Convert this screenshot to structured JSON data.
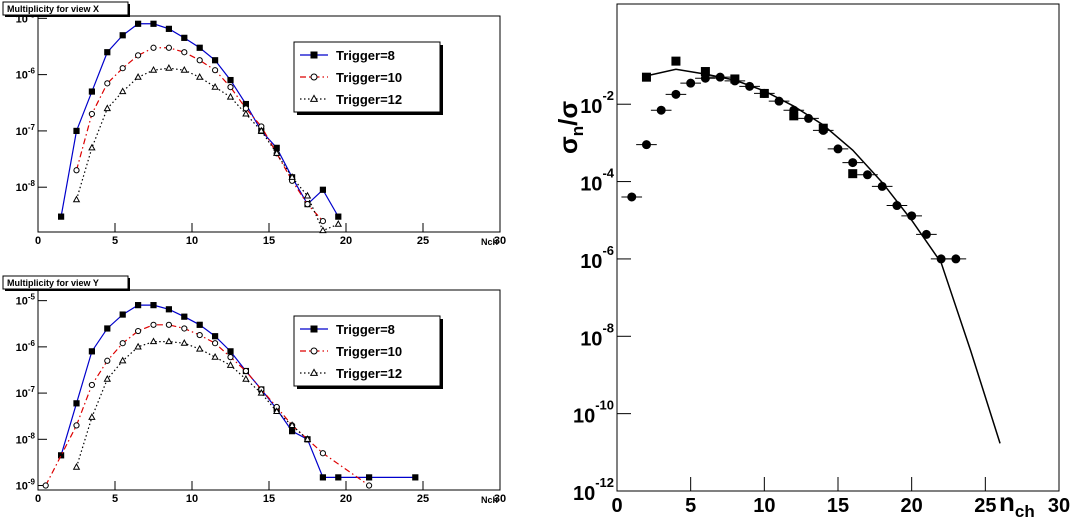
{
  "chart_data": [
    {
      "type": "line",
      "title": "Multiplicity for view X",
      "xlabel": "Nch",
      "ylog": true,
      "xlim": [
        0,
        30
      ],
      "xticks": [
        0,
        5,
        10,
        15,
        20,
        25,
        30
      ],
      "ylim": [
        1.6e-09,
        1.1e-05
      ],
      "yticks": [
        {
          "value": 1e-08,
          "label": "10",
          "exponent": "-8"
        },
        {
          "value": 1e-07,
          "label": "10",
          "exponent": "-7"
        },
        {
          "value": 1e-06,
          "label": "10",
          "exponent": "-6"
        },
        {
          "value": 1e-05,
          "label": "10",
          "exponent": "-5"
        }
      ],
      "legend": "upper right",
      "series": [
        {
          "name": "Trigger=8",
          "color": "#0000cc",
          "line_style": "solid",
          "marker": "square",
          "marker_color": "#000000",
          "marker_fill": true,
          "x": [
            1.5,
            2.5,
            3.5,
            4.5,
            5.5,
            6.5,
            7.5,
            8.5,
            9.5,
            10.5,
            11.5,
            12.5,
            13.5,
            14.5,
            15.5,
            16.5,
            17.5,
            18.5,
            19.5
          ],
          "values": [
            3e-09,
            1e-07,
            5e-07,
            2.5e-06,
            5e-06,
            8e-06,
            8e-06,
            6.5e-06,
            4.5e-06,
            3e-06,
            1.8e-06,
            8e-07,
            3e-07,
            1e-07,
            5e-08,
            1.5e-08,
            5e-09,
            9e-09,
            3e-09
          ]
        },
        {
          "name": "Trigger=10",
          "color": "#dd0000",
          "line_style": "dashdot",
          "marker": "circle",
          "marker_color": "#000000",
          "marker_fill": false,
          "x": [
            2.5,
            3.5,
            4.5,
            5.5,
            6.5,
            7.5,
            8.5,
            9.5,
            10.5,
            11.5,
            12.5,
            13.5,
            14.5,
            15.5,
            16.5,
            17.5,
            18.5
          ],
          "values": [
            2e-08,
            2e-07,
            7e-07,
            1.3e-06,
            2.2e-06,
            3e-06,
            3e-06,
            2.5e-06,
            1.8e-06,
            1.2e-06,
            6e-07,
            2.5e-07,
            1.2e-07,
            4e-08,
            1.3e-08,
            5e-09,
            2.5e-09
          ]
        },
        {
          "name": "Trigger=12",
          "color": "#000000",
          "line_style": "dotted",
          "marker": "triangle",
          "marker_color": "#000000",
          "marker_fill": false,
          "x": [
            2.5,
            3.5,
            4.5,
            5.5,
            6.5,
            7.5,
            8.5,
            9.5,
            10.5,
            11.5,
            12.5,
            13.5,
            14.5,
            15.5,
            16.5,
            17.5,
            18.5,
            19.5
          ],
          "values": [
            6e-09,
            5e-08,
            2.5e-07,
            5e-07,
            9e-07,
            1.2e-06,
            1.3e-06,
            1.2e-06,
            9e-07,
            6e-07,
            4e-07,
            2e-07,
            1e-07,
            4e-08,
            1.5e-08,
            7e-09,
            1.7e-09,
            2.2e-09
          ]
        }
      ]
    },
    {
      "type": "line",
      "title": "Multiplicity for view Y",
      "xlabel": "Nch",
      "ylog": true,
      "xlim": [
        0,
        30
      ],
      "xticks": [
        0,
        5,
        10,
        15,
        20,
        25,
        30
      ],
      "ylim": [
        8e-10,
        1.7e-05
      ],
      "yticks": [
        {
          "value": 1e-09,
          "label": "10",
          "exponent": "-9"
        },
        {
          "value": 1e-08,
          "label": "10",
          "exponent": "-8"
        },
        {
          "value": 1e-07,
          "label": "10",
          "exponent": "-7"
        },
        {
          "value": 1e-06,
          "label": "10",
          "exponent": "-6"
        },
        {
          "value": 1e-05,
          "label": "10",
          "exponent": "-5"
        }
      ],
      "legend": "upper right",
      "series": [
        {
          "name": "Trigger=8",
          "color": "#0000cc",
          "line_style": "solid",
          "marker": "square",
          "marker_color": "#000000",
          "marker_fill": true,
          "x": [
            1.5,
            2.5,
            3.5,
            4.5,
            5.5,
            6.5,
            7.5,
            8.5,
            9.5,
            10.5,
            11.5,
            12.5,
            13.5,
            14.5,
            15.5,
            16.5,
            17.5,
            18.5,
            19.5,
            21.5,
            24.5
          ],
          "values": [
            4.5e-09,
            6e-08,
            8e-07,
            2.5e-06,
            5e-06,
            8e-06,
            8e-06,
            6.5e-06,
            4.5e-06,
            3e-06,
            1.7e-06,
            8e-07,
            3e-07,
            1.2e-07,
            4.5e-08,
            1.5e-08,
            1e-08,
            1.5e-09,
            1.5e-09,
            1.5e-09,
            1.5e-09
          ]
        },
        {
          "name": "Trigger=10",
          "color": "#dd0000",
          "line_style": "dashdot",
          "marker": "circle",
          "marker_color": "#000000",
          "marker_fill": false,
          "x": [
            0.5,
            2.5,
            3.5,
            4.5,
            5.5,
            6.5,
            7.5,
            8.5,
            9.5,
            10.5,
            11.5,
            12.5,
            13.5,
            14.5,
            15.5,
            16.5,
            17.5,
            18.5,
            21.5
          ],
          "values": [
            1e-09,
            2e-08,
            1.5e-07,
            5e-07,
            1.2e-06,
            2.2e-06,
            3e-06,
            3e-06,
            2.5e-06,
            1.8e-06,
            1.2e-06,
            6e-07,
            3e-07,
            1.2e-07,
            5e-08,
            2e-08,
            1e-08,
            5e-09,
            1e-09
          ]
        },
        {
          "name": "Trigger=12",
          "color": "#000000",
          "line_style": "dotted",
          "marker": "triangle",
          "marker_color": "#000000",
          "marker_fill": false,
          "x": [
            2.5,
            3.5,
            4.5,
            5.5,
            6.5,
            7.5,
            8.5,
            9.5,
            10.5,
            11.5,
            12.5,
            13.5,
            14.5,
            15.5,
            16.5,
            17.5
          ],
          "values": [
            2.5e-09,
            3e-08,
            2e-07,
            5e-07,
            1e-06,
            1.3e-06,
            1.3e-06,
            1.2e-06,
            9e-07,
            6e-07,
            4e-07,
            2e-07,
            1e-07,
            4e-08,
            2e-08,
            1e-08
          ]
        }
      ]
    },
    {
      "type": "line",
      "xlabel": [
        "n",
        "ch"
      ],
      "ylabel": [
        "σ",
        "n",
        "/σ"
      ],
      "ylog": true,
      "xlim": [
        0,
        30
      ],
      "xticks": [
        0,
        5,
        10,
        15,
        20,
        25,
        30
      ],
      "ylim": [
        1e-12,
        3.9
      ],
      "yticks": [
        {
          "value": 1e-12,
          "label": "10",
          "exponent": "-12"
        },
        {
          "value": 1e-10,
          "label": "10",
          "exponent": "-10"
        },
        {
          "value": 1e-08,
          "label": "10",
          "exponent": "-8"
        },
        {
          "value": 1e-06,
          "label": "10",
          "exponent": "-6"
        },
        {
          "value": 0.0001,
          "label": "10",
          "exponent": "-4"
        },
        {
          "value": 0.01,
          "label": "10",
          "exponent": "-2"
        }
      ],
      "series": [
        {
          "color": "#000000",
          "line_style": "solid",
          "marker": "none",
          "x": [
            2,
            4,
            6,
            8,
            10,
            12,
            14,
            16,
            18,
            20,
            22,
            24,
            26
          ],
          "values": [
            0.054,
            0.08,
            0.06,
            0.042,
            0.022,
            0.0089,
            0.0029,
            0.00065,
            9.5e-05,
            1e-05,
            8e-07,
            4.3e-09,
            1.7e-11
          ]
        },
        {
          "color": "#000000",
          "line_style": "none",
          "marker": "square",
          "marker_color": "#000000",
          "marker_fill": true,
          "x": [
            2,
            4,
            6,
            8,
            10,
            12,
            14,
            16
          ],
          "values": [
            0.05,
            0.13,
            0.07,
            0.045,
            0.019,
            0.005,
            0.0024,
            0.00016
          ]
        },
        {
          "color": "#000000",
          "line_style": "none",
          "marker": "circle",
          "marker_color": "#000000",
          "marker_fill": true,
          "x": [
            1,
            2,
            3,
            4,
            5,
            6,
            7,
            8,
            9,
            10,
            11,
            12,
            13,
            14,
            15,
            16,
            17,
            18,
            19,
            20,
            21,
            22,
            23
          ],
          "values": [
            4e-05,
            0.0009,
            0.007,
            0.018,
            0.035,
            0.047,
            0.05,
            0.04,
            0.029,
            0.019,
            0.012,
            0.007,
            0.0043,
            0.0021,
            0.0007,
            0.00031,
            0.00015,
            7.5e-05,
            2.4e-05,
            1.3e-05,
            4.3e-06,
            1e-06,
            1e-06
          ],
          "xerr": [
            0.7,
            0.7,
            0.7,
            0.7,
            0.7,
            0.7,
            0.7,
            0.7,
            0.7,
            0.7,
            0.7,
            0.7,
            0.7,
            0.7,
            0.7,
            0.7,
            0.7,
            0.7,
            0.7,
            0.7,
            0.7,
            0.7,
            0.7
          ]
        }
      ]
    }
  ]
}
